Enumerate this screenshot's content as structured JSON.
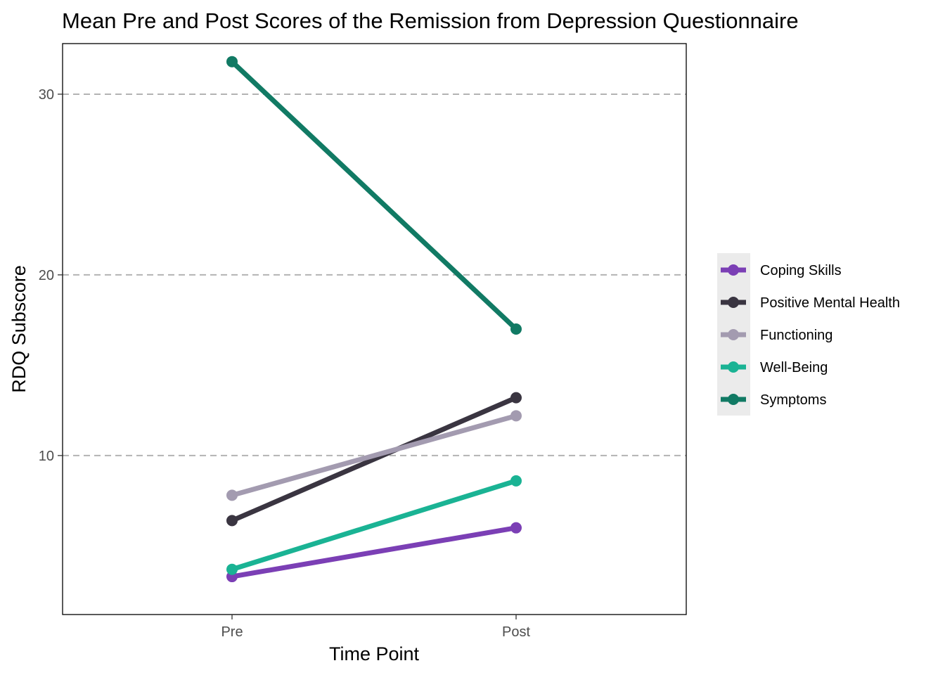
{
  "chart_data": {
    "type": "line",
    "title": "Mean Pre and Post Scores of the Remission from Depression Questionnaire",
    "xlabel": "Time Point",
    "ylabel": "RDQ Subscore",
    "categories": [
      "Pre",
      "Post"
    ],
    "ylim": [
      1.2,
      32.8
    ],
    "yticks": [
      10,
      20,
      30
    ],
    "grid": "major y dashed",
    "legend_position": "right",
    "series": [
      {
        "name": "Coping Skills",
        "color": "#7b3fb5",
        "values": [
          3.3,
          6.0
        ]
      },
      {
        "name": "Positive Mental Health",
        "color": "#3a3541",
        "values": [
          6.4,
          13.2
        ]
      },
      {
        "name": "Functioning",
        "color": "#a39bb0",
        "values": [
          7.8,
          12.2
        ]
      },
      {
        "name": "Well-Being",
        "color": "#1ab394",
        "values": [
          3.7,
          8.6
        ]
      },
      {
        "name": "Symptoms",
        "color": "#117a64",
        "values": [
          31.8,
          17.0
        ]
      }
    ]
  }
}
